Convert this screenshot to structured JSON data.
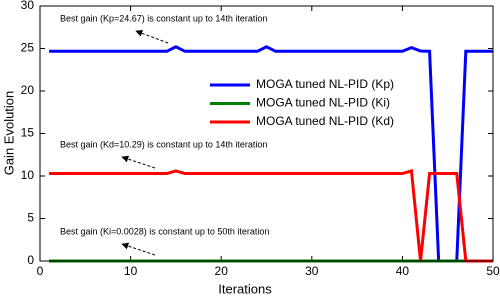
{
  "chart_data": {
    "type": "line",
    "xlabel": "Iterations",
    "ylabel": "Gain Evolution",
    "x": [
      1,
      2,
      3,
      4,
      5,
      6,
      7,
      8,
      9,
      10,
      11,
      12,
      13,
      14,
      15,
      16,
      17,
      18,
      19,
      20,
      21,
      22,
      23,
      24,
      25,
      26,
      27,
      28,
      29,
      30,
      31,
      32,
      33,
      34,
      35,
      36,
      37,
      38,
      39,
      40,
      41,
      42,
      43,
      44,
      45,
      46,
      47,
      48,
      49,
      50
    ],
    "series": [
      {
        "name": "MOGA tuned NL-PID (Kp)",
        "color": "#0000ff",
        "values": [
          24.67,
          24.67,
          24.67,
          24.67,
          24.67,
          24.67,
          24.67,
          24.67,
          24.67,
          24.67,
          24.67,
          24.67,
          24.67,
          24.67,
          25.2,
          24.67,
          24.67,
          24.67,
          24.67,
          24.67,
          24.67,
          24.67,
          24.67,
          24.67,
          25.2,
          24.67,
          24.67,
          24.67,
          24.67,
          24.67,
          24.67,
          24.67,
          24.67,
          24.67,
          24.67,
          24.67,
          24.67,
          24.67,
          24.67,
          24.67,
          25.1,
          24.7,
          24.67,
          0,
          0,
          0,
          24.67,
          24.67,
          24.67,
          24.67
        ]
      },
      {
        "name": "MOGA tuned NL-PID (Ki)",
        "color": "#008000",
        "values": [
          0.0028,
          0.0028,
          0.0028,
          0.0028,
          0.0028,
          0.0028,
          0.0028,
          0.0028,
          0.0028,
          0.0028,
          0.0028,
          0.0028,
          0.0028,
          0.0028,
          0.0028,
          0.0028,
          0.0028,
          0.0028,
          0.0028,
          0.0028,
          0.0028,
          0.0028,
          0.0028,
          0.0028,
          0.0028,
          0.0028,
          0.0028,
          0.0028,
          0.0028,
          0.0028,
          0.0028,
          0.0028,
          0.0028,
          0.0028,
          0.0028,
          0.0028,
          0.0028,
          0.0028,
          0.0028,
          0.0028,
          0.0028,
          0.0028,
          0.0028,
          0.0028,
          0.0028,
          0.0028,
          0.0028,
          0.0028,
          0.0028,
          0.0028
        ]
      },
      {
        "name": "MOGA tuned NL-PID (Kd)",
        "color": "#ff0000",
        "values": [
          10.29,
          10.29,
          10.29,
          10.29,
          10.29,
          10.29,
          10.29,
          10.29,
          10.29,
          10.29,
          10.29,
          10.29,
          10.29,
          10.29,
          10.6,
          10.29,
          10.29,
          10.29,
          10.29,
          10.29,
          10.29,
          10.29,
          10.29,
          10.29,
          10.29,
          10.29,
          10.29,
          10.29,
          10.29,
          10.29,
          10.29,
          10.29,
          10.29,
          10.29,
          10.29,
          10.29,
          10.29,
          10.29,
          10.29,
          10.29,
          10.6,
          0,
          10.29,
          10.29,
          10.29,
          10.29,
          0,
          0,
          0,
          0
        ]
      }
    ],
    "annotations": [
      "Best gain (Kp=24.67) is constant up to 14th iteration",
      "Best gain (Kd=10.29) is constant up to 14th iteration",
      "Best gain (Ki=0.0028) is constant up to 50th iteration"
    ],
    "xlim": [
      0,
      50
    ],
    "xticks": [
      0,
      10,
      20,
      30,
      40,
      50
    ],
    "ylim": [
      0,
      30
    ],
    "yticks": [
      0,
      5,
      10,
      15,
      20,
      25,
      30
    ]
  }
}
